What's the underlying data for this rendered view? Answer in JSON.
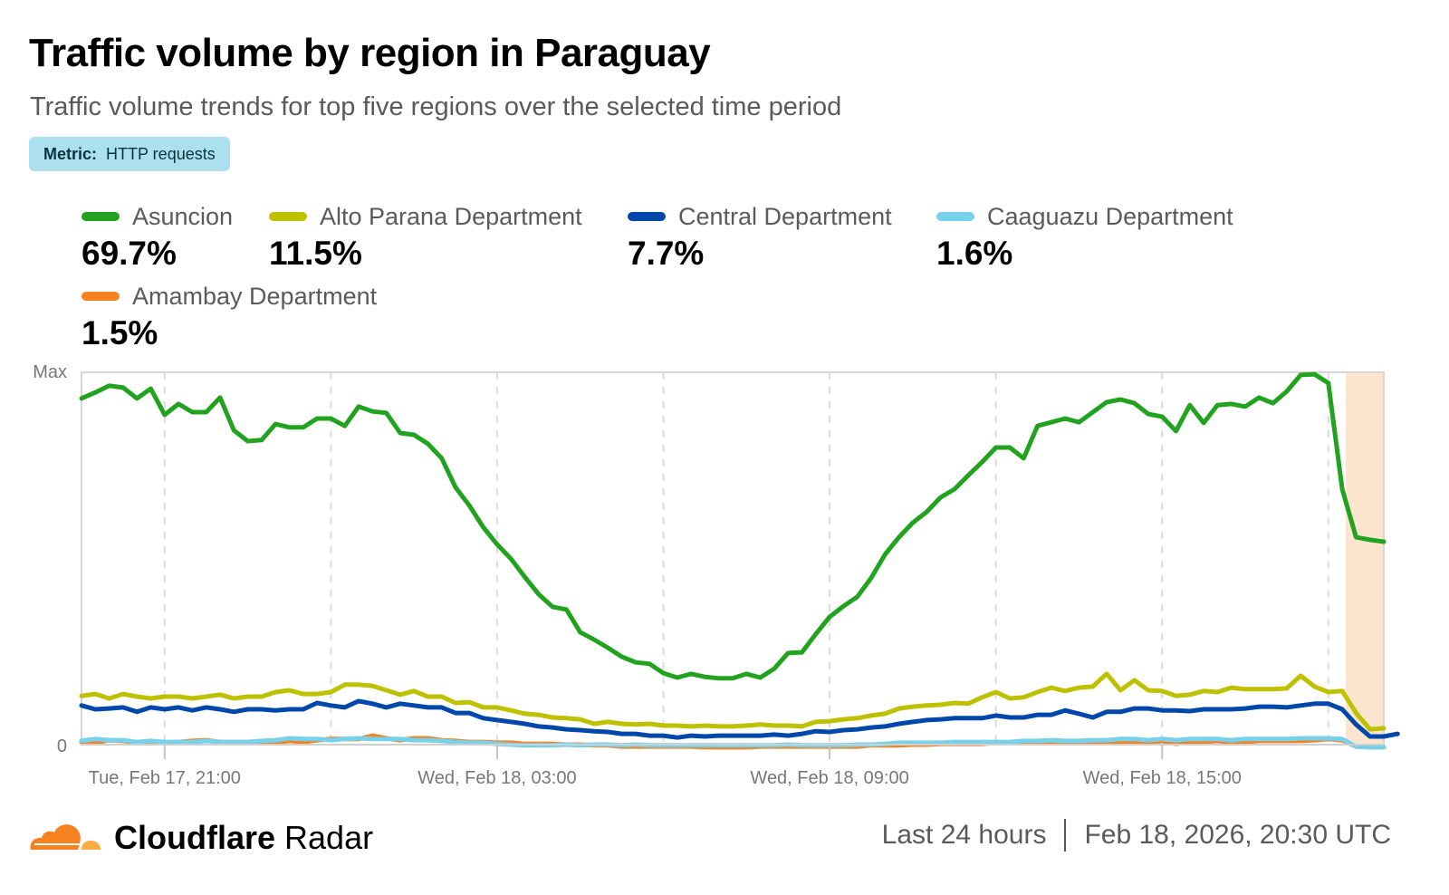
{
  "header": {
    "title": "Traffic volume by region in Paraguay",
    "subtitle": "Traffic volume trends for top five regions over the selected time period",
    "metric_key": "Metric:",
    "metric_value": "HTTP requests"
  },
  "legend": [
    {
      "name": "Asuncion",
      "pct": "69.7%",
      "color": "#22a31f"
    },
    {
      "name": "Alto Parana Department",
      "pct": "11.5%",
      "color": "#bdc100"
    },
    {
      "name": "Central Department",
      "pct": "7.7%",
      "color": "#0047ab"
    },
    {
      "name": "Caaguazu Department",
      "pct": "1.6%",
      "color": "#76d1ea"
    },
    {
      "name": "Amambay Department",
      "pct": "1.5%",
      "color": "#f6821f"
    }
  ],
  "footer": {
    "brand_bold": "Cloudflare",
    "brand_light": "Radar",
    "range": "Last 24 hours",
    "timestamp": "Feb 18, 2026, 20:30 UTC"
  },
  "chart_data": {
    "type": "line",
    "title": "Traffic volume by region in Paraguay",
    "xlabel": "",
    "ylabel": "",
    "y_tick_labels": [
      "Max",
      "0"
    ],
    "ylim": [
      0,
      100
    ],
    "x_unit": "15-minute intervals starting Tue, Feb 17, ~19:30 UTC",
    "x_tick_labels": [
      {
        "index": 6,
        "label": "Tue, Feb 17, 21:00"
      },
      {
        "index": 30,
        "label": "Wed, Feb 18, 03:00"
      },
      {
        "index": 54,
        "label": "Wed, Feb 18, 09:00"
      },
      {
        "index": 78,
        "label": "Wed, Feb 18, 15:00"
      }
    ],
    "grid_indices": [
      6,
      18,
      30,
      42,
      54,
      66,
      78,
      90
    ],
    "highlight_region": {
      "from_index": 91,
      "to_index": 94,
      "color": "#fde4cf",
      "meaning": "incomplete data period"
    },
    "grid": true,
    "legend_position": "top",
    "series": [
      {
        "name": "Asuncion",
        "color": "#22a31f",
        "values": [
          93,
          94.6,
          96.4,
          95.9,
          93,
          95.6,
          88.6,
          91.5,
          89.3,
          89.3,
          93.2,
          84.4,
          81.5,
          81.8,
          86.1,
          85.2,
          85.2,
          87.6,
          87.6,
          85.6,
          90.8,
          89.5,
          89.1,
          83.7,
          83.2,
          80.8,
          76.9,
          69.1,
          64.2,
          58.4,
          53.8,
          49.9,
          45,
          40.4,
          37,
          36.3,
          30.2,
          28.2,
          26,
          23.6,
          22.1,
          21.7,
          19.2,
          18,
          19,
          18.2,
          17.8,
          17.8,
          19,
          18,
          20.4,
          24.6,
          24.8,
          29.7,
          34.3,
          37.2,
          39.7,
          44.8,
          51.1,
          55.7,
          59.6,
          62.5,
          66.4,
          68.6,
          72.3,
          75.9,
          79.8,
          79.8,
          76.9,
          85.6,
          86.6,
          87.6,
          86.6,
          89.3,
          92,
          92.7,
          91.7,
          88.8,
          88.1,
          84.2,
          91.2,
          86.4,
          91.2,
          91.5,
          90.8,
          93.2,
          91.7,
          94.9,
          99.3,
          99.5,
          97.1,
          68.6,
          55.7,
          55,
          54.5
        ]
      },
      {
        "name": "Alto Parana Department",
        "color": "#bdc100",
        "values": [
          13.1,
          13.6,
          12.4,
          13.6,
          12.9,
          12.4,
          12.9,
          12.9,
          12.4,
          12.9,
          13.4,
          12.4,
          12.9,
          12.9,
          14.1,
          14.6,
          13.6,
          13.6,
          14.1,
          16.1,
          16.1,
          15.8,
          14.6,
          13.4,
          14.4,
          12.9,
          12.9,
          11.2,
          11.4,
          10,
          10,
          9.2,
          8.3,
          8,
          7.3,
          7.1,
          6.8,
          5.6,
          6.1,
          5.6,
          5.4,
          5.6,
          5.1,
          5.1,
          4.9,
          5.1,
          4.9,
          4.9,
          5.1,
          5.4,
          5.1,
          5.1,
          4.9,
          6.1,
          6.3,
          6.8,
          7.1,
          7.8,
          8.3,
          9.7,
          10.2,
          10.5,
          10.7,
          11.2,
          11,
          12.7,
          14.1,
          12.4,
          12.7,
          14.1,
          15.3,
          14.4,
          15.3,
          15.6,
          19,
          14.6,
          17.3,
          14.6,
          14.4,
          13.1,
          13.4,
          14.4,
          14.1,
          15.3,
          14.9,
          14.9,
          14.9,
          15.1,
          18.5,
          15.6,
          14.1,
          14.4,
          8.5,
          4.1,
          4.4
        ]
      },
      {
        "name": "Central Department",
        "color": "#0047ab",
        "values": [
          10.5,
          9.5,
          9.7,
          10,
          8.8,
          10,
          9.5,
          10,
          9.2,
          10,
          9.5,
          8.8,
          9.5,
          9.5,
          9.2,
          9.5,
          9.5,
          11.2,
          10.5,
          10,
          11.7,
          11,
          10,
          11,
          10.5,
          10,
          10,
          8.5,
          8.5,
          7.1,
          6.6,
          6.1,
          5.6,
          4.9,
          4.6,
          4.1,
          3.9,
          3.6,
          3.4,
          2.9,
          2.9,
          2.4,
          2.4,
          1.9,
          2.4,
          2.2,
          2.4,
          2.4,
          2.4,
          2.4,
          2.7,
          2.4,
          2.9,
          3.6,
          3.4,
          3.9,
          4.1,
          4.6,
          4.9,
          5.6,
          6.1,
          6.6,
          6.8,
          7.1,
          7.1,
          7.1,
          7.8,
          7.3,
          7.3,
          8,
          8,
          9.2,
          8.3,
          7.3,
          8.8,
          8.8,
          9.7,
          9.7,
          9.2,
          9.2,
          9,
          9.5,
          9.5,
          9.5,
          9.7,
          10.2,
          10.2,
          10,
          10.5,
          11,
          11,
          9.5,
          5.4,
          2.2,
          2.2,
          2.9
        ]
      },
      {
        "name": "Caaguazu Department",
        "color": "#76d1ea",
        "values": [
          1,
          1.5,
          1.2,
          1.2,
          0.7,
          1,
          0.7,
          0.7,
          0.7,
          1,
          0.7,
          0.7,
          0.7,
          1,
          1.2,
          1.7,
          1.5,
          1.5,
          1.2,
          1.5,
          1.7,
          1.5,
          1.5,
          1.5,
          1.2,
          1.2,
          1,
          0.7,
          0.5,
          0.5,
          0.2,
          0,
          -0.2,
          -0.2,
          -0.2,
          0,
          -0.2,
          0,
          0,
          -0.2,
          0,
          -0.2,
          -0.2,
          -0.2,
          -0.2,
          -0.2,
          -0.2,
          -0.2,
          -0.2,
          -0.2,
          -0.2,
          0,
          -0.2,
          -0.2,
          -0.2,
          -0.2,
          0,
          0,
          0.2,
          0.5,
          0.5,
          0.5,
          0.5,
          0.7,
          0.7,
          0.7,
          0.7,
          0.7,
          1,
          1,
          1.2,
          1,
          1,
          1.2,
          1.2,
          1.5,
          1.5,
          1.2,
          1.5,
          1.2,
          1.5,
          1.5,
          1.5,
          1.2,
          1.5,
          1.5,
          1.5,
          1.5,
          1.7,
          1.7,
          1.7,
          1.5,
          -0.5,
          -0.7,
          -0.7
        ]
      },
      {
        "name": "Amambay Department",
        "color": "#f6821f",
        "values": [
          0.7,
          0.5,
          1.2,
          1,
          0.5,
          0.7,
          0.5,
          0.7,
          1,
          1.2,
          0.7,
          0.7,
          0.7,
          0.7,
          0.5,
          1,
          0.7,
          1.2,
          1.5,
          1.5,
          1.5,
          2.4,
          1.7,
          1.2,
          1.7,
          1.7,
          1.2,
          1,
          0.7,
          0.7,
          0.5,
          0.5,
          0.2,
          0.2,
          0.2,
          0,
          0,
          -0.2,
          -0.2,
          -0.5,
          -0.5,
          -0.5,
          -0.5,
          -0.5,
          -0.5,
          -0.7,
          -0.7,
          -0.7,
          -0.7,
          -0.5,
          -0.5,
          -0.5,
          -0.5,
          -0.5,
          -0.5,
          -0.5,
          -0.5,
          -0.2,
          -0.2,
          -0.2,
          0,
          0,
          0.2,
          0.2,
          0.2,
          0.2,
          0.5,
          0.5,
          0.5,
          0.5,
          0.7,
          0.7,
          0.5,
          0.7,
          0.5,
          0.5,
          0.5,
          0.5,
          1,
          0.2,
          0.7,
          0.7,
          1,
          0.5,
          0.7,
          1,
          1,
          1,
          1,
          1.2,
          1.5,
          1.2,
          -0.5,
          -0.7,
          -0.7
        ]
      }
    ]
  }
}
